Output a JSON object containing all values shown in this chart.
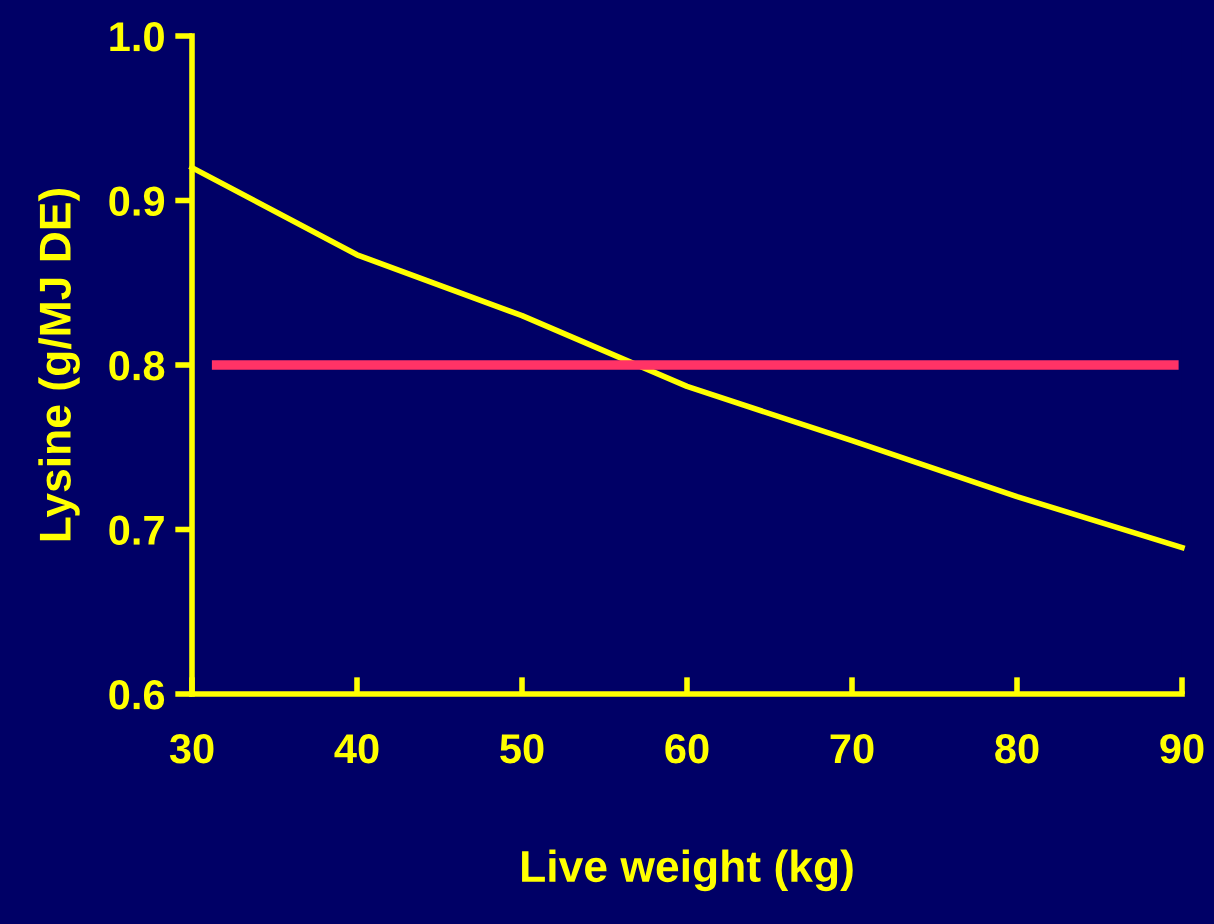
{
  "chart_data": {
    "type": "line",
    "xlabel": "Live weight (kg)",
    "ylabel": "Lysine (g/MJ DE)",
    "xlim": [
      30,
      90
    ],
    "xticks": [
      30,
      40,
      50,
      60,
      70,
      80,
      90
    ],
    "ylim": [
      0.6,
      1.0
    ],
    "yticks": [
      0.6,
      0.7,
      0.8,
      0.9,
      {
        "value": 1.0,
        "label": "1.0"
      }
    ],
    "grid": false,
    "marker": "none",
    "line_style": "solid",
    "series": [
      {
        "color": "#ffff00",
        "x": [
          30,
          40,
          50,
          60,
          70,
          80,
          90
        ],
        "values": [
          0.92,
          0.867,
          0.83,
          0.787,
          0.754,
          0.72,
          0.689
        ]
      },
      {
        "color": "#ff3366",
        "x": [
          31.5,
          89.5
        ],
        "values": [
          0.8,
          0.8
        ]
      }
    ]
  }
}
